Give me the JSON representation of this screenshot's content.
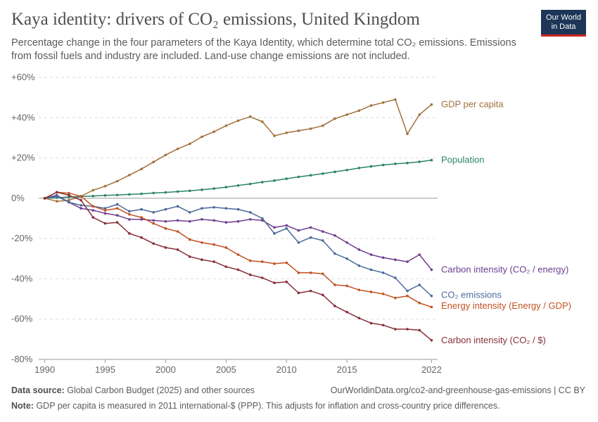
{
  "header": {
    "title": "Kaya identity: drivers of CO₂ emissions, United Kingdom",
    "subtitle": "Percentage change in the four parameters of the Kaya Identity, which determine total CO₂ emissions. Emissions from fossil fuels and industry are included. Land-use change emissions are not included."
  },
  "logo": {
    "line1": "Our World",
    "line2": "in Data"
  },
  "footer": {
    "source_label": "Data source:",
    "source_text": "Global Carbon Budget (2025) and other sources",
    "url_text": "OurWorldinData.org/co2-and-greenhouse-gas-emissions | CC BY",
    "note_label": "Note:",
    "note_text": "GDP per capita is measured in 2011 international-$ (PPP). This adjusts for inflation and cross-country price differences."
  },
  "chart_data": {
    "type": "line",
    "x_ticks": [
      1990,
      1995,
      2000,
      2005,
      2010,
      2015,
      2022
    ],
    "y_ticks": [
      60,
      40,
      20,
      0,
      -20,
      -40,
      -60,
      -80
    ],
    "y_tick_labels": [
      "+60%",
      "+40%",
      "+20%",
      "0%",
      "-20%",
      "-40%",
      "-60%",
      "-80%"
    ],
    "xlim": [
      1989.5,
      2022.5
    ],
    "ylim": [
      -80,
      60
    ],
    "x": [
      1990,
      1991,
      1992,
      1993,
      1994,
      1995,
      1996,
      1997,
      1998,
      1999,
      2000,
      2001,
      2002,
      2003,
      2004,
      2005,
      2006,
      2007,
      2008,
      2009,
      2010,
      2011,
      2012,
      2013,
      2014,
      2015,
      2016,
      2017,
      2018,
      2019,
      2020,
      2021,
      2022
    ],
    "series": [
      {
        "name": "GDP per capita",
        "color": "#a2713d",
        "values": [
          0,
          -1.5,
          -1.0,
          1.0,
          4.0,
          6.0,
          8.5,
          11.5,
          14.5,
          18.0,
          21.5,
          24.5,
          27.0,
          30.5,
          33.0,
          36.0,
          38.5,
          40.5,
          38.0,
          31.0,
          32.5,
          33.5,
          34.5,
          36.0,
          39.5,
          41.5,
          43.5,
          46.0,
          47.5,
          49.0,
          32.0,
          41.5,
          46.5
        ]
      },
      {
        "name": "Population",
        "color": "#2c8465",
        "values": [
          0,
          0.3,
          0.6,
          0.9,
          1.1,
          1.4,
          1.6,
          1.9,
          2.2,
          2.6,
          2.9,
          3.3,
          3.7,
          4.2,
          4.8,
          5.5,
          6.3,
          7.1,
          8.0,
          8.8,
          9.7,
          10.6,
          11.4,
          12.2,
          13.1,
          14.0,
          15.0,
          15.8,
          16.5,
          17.1,
          17.5,
          18.1,
          18.9
        ]
      },
      {
        "name": "Carbon intensity (CO₂ / energy)",
        "color": "#6d3e91",
        "values": [
          0,
          1.5,
          -2.0,
          -5.0,
          -6.0,
          -7.5,
          -8.5,
          -10.5,
          -10.5,
          -11.0,
          -11.5,
          -11.0,
          -11.5,
          -10.5,
          -11.0,
          -12.0,
          -11.5,
          -10.5,
          -11.0,
          -14.5,
          -13.5,
          -16.0,
          -14.5,
          -16.5,
          -18.5,
          -22.0,
          -25.5,
          -28.0,
          -29.5,
          -30.5,
          -31.5,
          -28.0,
          -35.5
        ]
      },
      {
        "name": "CO₂ emissions",
        "color": "#4c6a9c",
        "values": [
          0,
          1.0,
          -2.0,
          -3.5,
          -4.0,
          -5.0,
          -3.0,
          -6.5,
          -5.5,
          -7.0,
          -5.5,
          -4.0,
          -7.0,
          -5.0,
          -4.5,
          -5.0,
          -5.5,
          -7.0,
          -10.0,
          -17.5,
          -15.0,
          -22.0,
          -19.5,
          -21.0,
          -27.5,
          -30.0,
          -33.5,
          -35.5,
          -37.0,
          -39.5,
          -46.0,
          -43.0,
          -48.5
        ]
      },
      {
        "name": "Energy intensity (Energy / GDP)",
        "color": "#c15222",
        "values": [
          0,
          3.0,
          2.5,
          1.0,
          -4.0,
          -6.0,
          -5.0,
          -8.0,
          -9.5,
          -12.5,
          -15.0,
          -16.5,
          -20.5,
          -22.0,
          -23.0,
          -24.5,
          -28.0,
          -31.0,
          -31.5,
          -32.5,
          -32.0,
          -37.0,
          -37.0,
          -37.5,
          -43.0,
          -43.5,
          -45.5,
          -46.5,
          -47.5,
          -49.5,
          -48.5,
          -52.0,
          -54.0
        ]
      },
      {
        "name": "Carbon intensity (CO₂ / $)",
        "color": "#883039",
        "values": [
          0,
          3.0,
          1.5,
          -1.0,
          -9.5,
          -12.5,
          -12.0,
          -17.5,
          -19.5,
          -22.5,
          -24.5,
          -25.5,
          -29.0,
          -30.5,
          -31.5,
          -34.0,
          -35.5,
          -38.0,
          -39.5,
          -42.0,
          -41.5,
          -47.0,
          -46.0,
          -48.0,
          -53.5,
          -56.5,
          -59.5,
          -62.0,
          -63.0,
          -65.0,
          -65.0,
          -65.5,
          -70.5
        ]
      }
    ]
  }
}
